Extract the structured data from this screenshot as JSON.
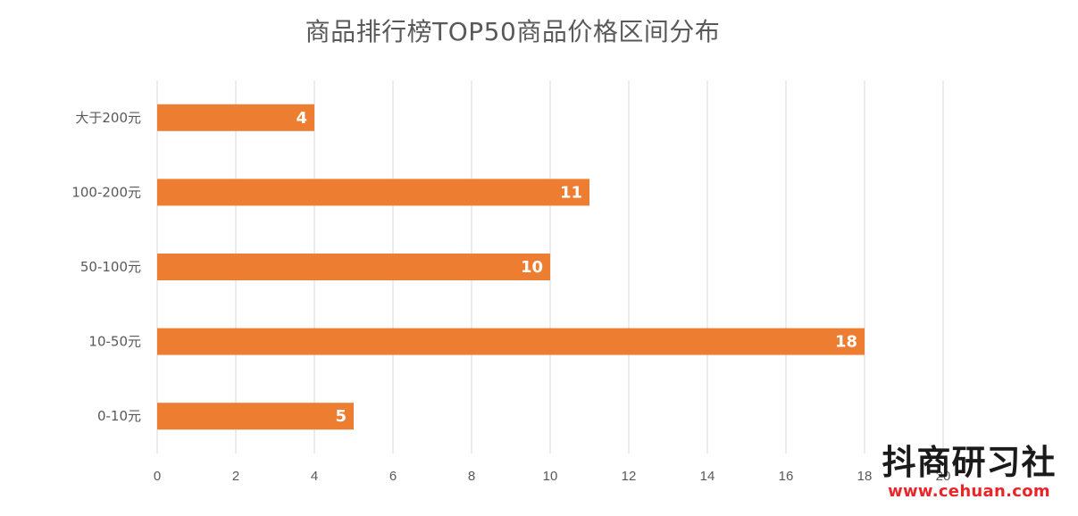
{
  "chart_data": {
    "type": "bar",
    "orientation": "horizontal",
    "title": "商品排行榜TOP50商品价格区间分布",
    "categories": [
      "0-10元",
      "10-50元",
      "50-100元",
      "100-200元",
      "大于200元"
    ],
    "values": [
      5,
      18,
      10,
      11,
      4
    ],
    "xlim": [
      0,
      20
    ],
    "x_ticks": [
      "0",
      "2",
      "4",
      "6",
      "8",
      "10",
      "12",
      "14",
      "16",
      "18",
      "20"
    ],
    "grid": "vertical",
    "bar_color": "#ED7D31",
    "xlabel": "",
    "ylabel": ""
  },
  "watermark": {
    "name": "抖商研习社",
    "url": "www.cehuan.com",
    "url_color": "#E8262A"
  }
}
